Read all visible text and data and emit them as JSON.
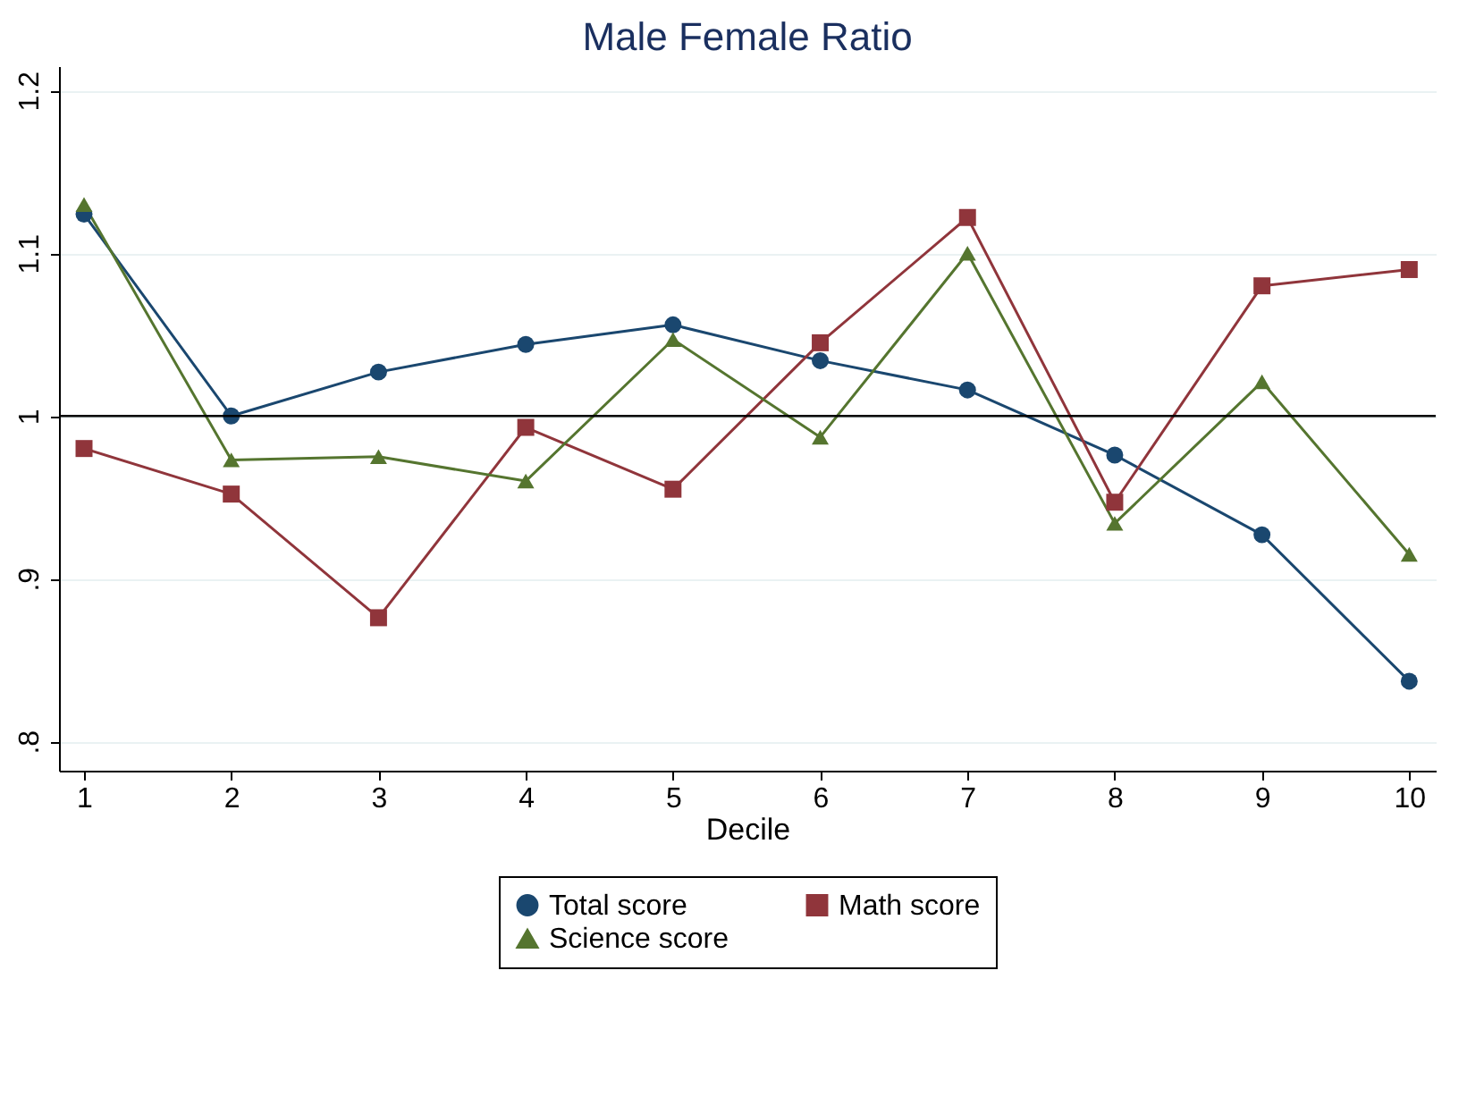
{
  "chart_data": {
    "type": "line",
    "title": "Male Female Ratio",
    "xlabel": "Decile",
    "x": [
      1,
      2,
      3,
      4,
      5,
      6,
      7,
      8,
      9,
      10
    ],
    "series": [
      {
        "name": "Total score",
        "color": "#1a476f",
        "marker": "circle",
        "values": [
          1.124,
          1.0,
          1.027,
          1.044,
          1.056,
          1.034,
          1.016,
          0.976,
          0.927,
          0.837
        ]
      },
      {
        "name": "Math score",
        "color": "#90353b",
        "marker": "square",
        "values": [
          0.98,
          0.952,
          0.876,
          0.993,
          0.955,
          1.045,
          1.122,
          0.947,
          1.08,
          1.09
        ]
      },
      {
        "name": "Science score",
        "color": "#55752f",
        "marker": "triangle",
        "values": [
          1.13,
          0.973,
          0.975,
          0.96,
          1.047,
          0.987,
          1.1,
          0.934,
          1.021,
          0.915
        ]
      }
    ],
    "xlim": [
      0.83,
      10.18
    ],
    "xticks": [
      1,
      2,
      3,
      4,
      5,
      6,
      7,
      8,
      9,
      10
    ],
    "ylim": [
      0.782,
      1.215
    ],
    "yticks": [
      {
        "value": 0.8,
        "label": ".8"
      },
      {
        "value": 0.9,
        "label": ".9"
      },
      {
        "value": 1,
        "label": "1"
      },
      {
        "value": 1.1,
        "label": "1.1"
      },
      {
        "value": 1.2,
        "label": "1.2"
      }
    ],
    "ref_lines": [
      {
        "axis": "y",
        "value": 1,
        "color": "#000000"
      }
    ],
    "grid": "y",
    "legend": "bottom"
  }
}
